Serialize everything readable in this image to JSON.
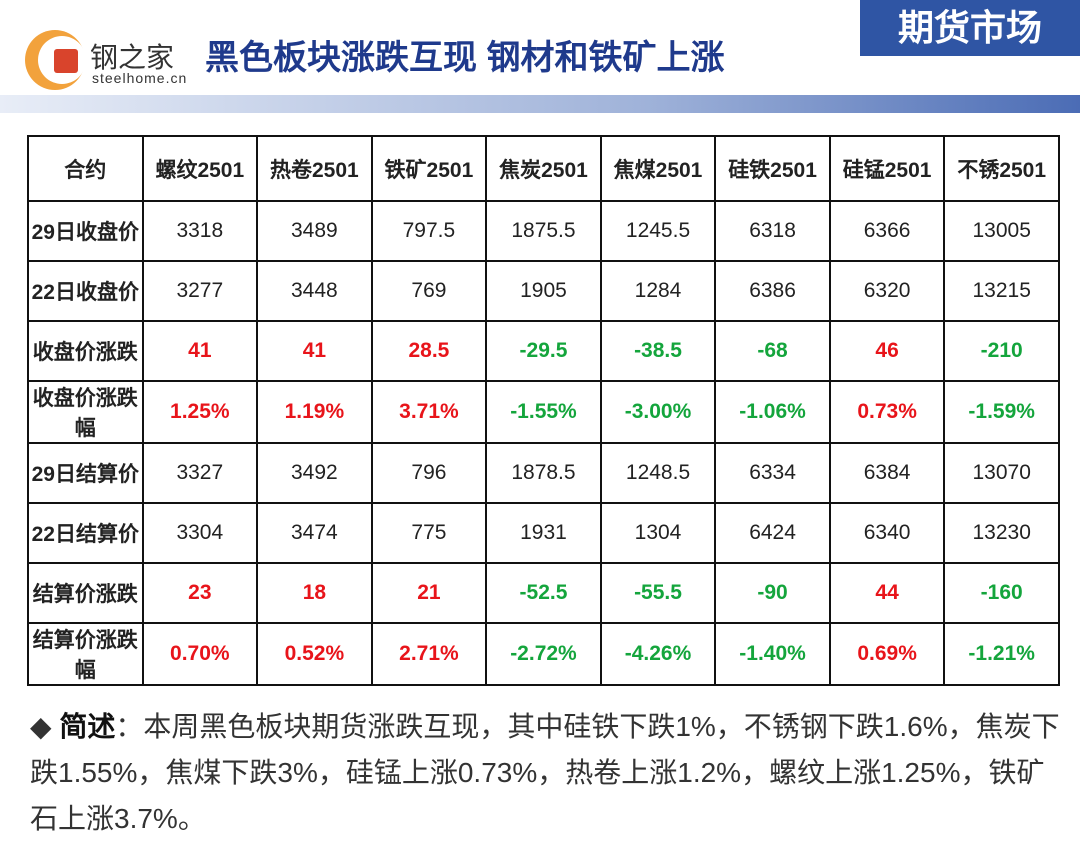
{
  "header": {
    "logo_text": "钢之家",
    "logo_sub": "steelhome.cn",
    "title": "黑色板块涨跌互现 钢材和铁矿上涨",
    "badge": "期货市场"
  },
  "table": {
    "columns": [
      "合约",
      "螺纹2501",
      "热卷2501",
      "铁矿2501",
      "焦炭2501",
      "焦煤2501",
      "硅铁2501",
      "硅锰2501",
      "不锈2501"
    ],
    "rows": [
      [
        "29日收盘价",
        "3318",
        "3489",
        "797.5",
        "1875.5",
        "1245.5",
        "6318",
        "6366",
        "13005"
      ],
      [
        "22日收盘价",
        "3277",
        "3448",
        "769",
        "1905",
        "1284",
        "6386",
        "6320",
        "13215"
      ],
      [
        "收盘价涨跌",
        "41",
        "41",
        "28.5",
        "-29.5",
        "-38.5",
        "-68",
        "46",
        "-210"
      ],
      [
        "收盘价涨跌幅",
        "1.25%",
        "1.19%",
        "3.71%",
        "-1.55%",
        "-3.00%",
        "-1.06%",
        "0.73%",
        "-1.59%"
      ],
      [
        "29日结算价",
        "3327",
        "3492",
        "796",
        "1878.5",
        "1248.5",
        "6334",
        "6384",
        "13070"
      ],
      [
        "22日结算价",
        "3304",
        "3474",
        "775",
        "1931",
        "1304",
        "6424",
        "6340",
        "13230"
      ],
      [
        "结算价涨跌",
        "23",
        "18",
        "21",
        "-52.5",
        "-55.5",
        "-90",
        "44",
        "-160"
      ],
      [
        "结算价涨跌幅",
        "0.70%",
        "0.52%",
        "2.71%",
        "-2.72%",
        "-4.26%",
        "-1.40%",
        "0.69%",
        "-1.21%"
      ]
    ]
  },
  "summary": {
    "label": "简述",
    "text": "：本周黑色板块期货涨跌互现，其中硅铁下跌1%，不锈钢下跌1.6%，焦炭下跌1.55%，焦煤下跌3%，硅锰上涨0.73%，热卷上涨1.2%，螺纹上涨1.25%，铁矿石上涨3.7%。"
  }
}
